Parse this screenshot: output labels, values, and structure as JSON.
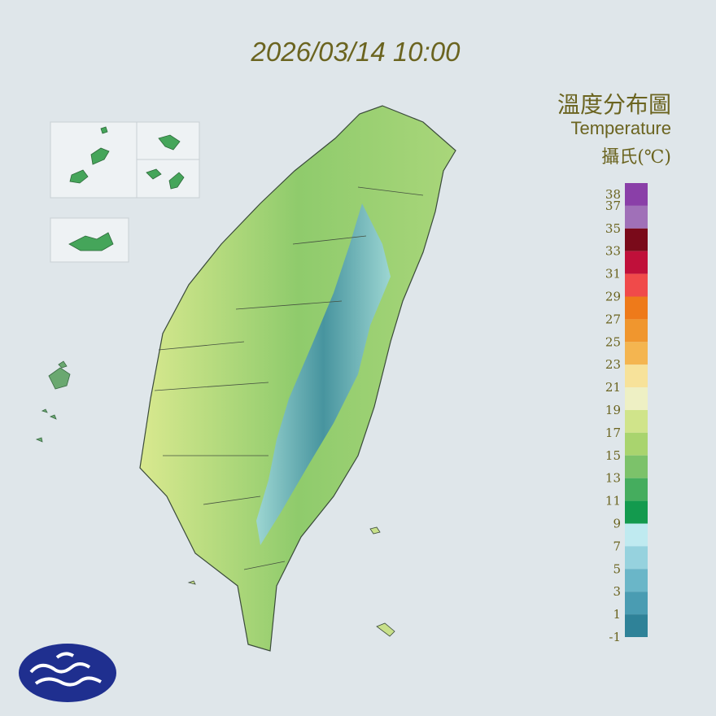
{
  "header": {
    "datetime": "2026/03/14 10:00"
  },
  "legend": {
    "title": "溫度分布圖",
    "subtitle": "Temperature",
    "unit": "攝氏(℃)",
    "ticks": [
      38,
      37,
      35,
      33,
      31,
      29,
      27,
      25,
      23,
      21,
      19,
      17,
      15,
      13,
      11,
      9,
      7,
      5,
      3,
      1,
      -1
    ],
    "colors": [
      "#8a3fa8",
      "#a070b8",
      "#7a0a1a",
      "#c0103a",
      "#f04a4a",
      "#ee7a1a",
      "#f0962e",
      "#f4b550",
      "#f7e29a",
      "#eef0c4",
      "#d0e48a",
      "#a9d46e",
      "#7cc26a",
      "#45ad5e",
      "#139a4e",
      "#bfeaf0",
      "#96d2de",
      "#6ab6c8",
      "#4a9cb2",
      "#2f8298",
      "#1c6f82"
    ]
  }
}
